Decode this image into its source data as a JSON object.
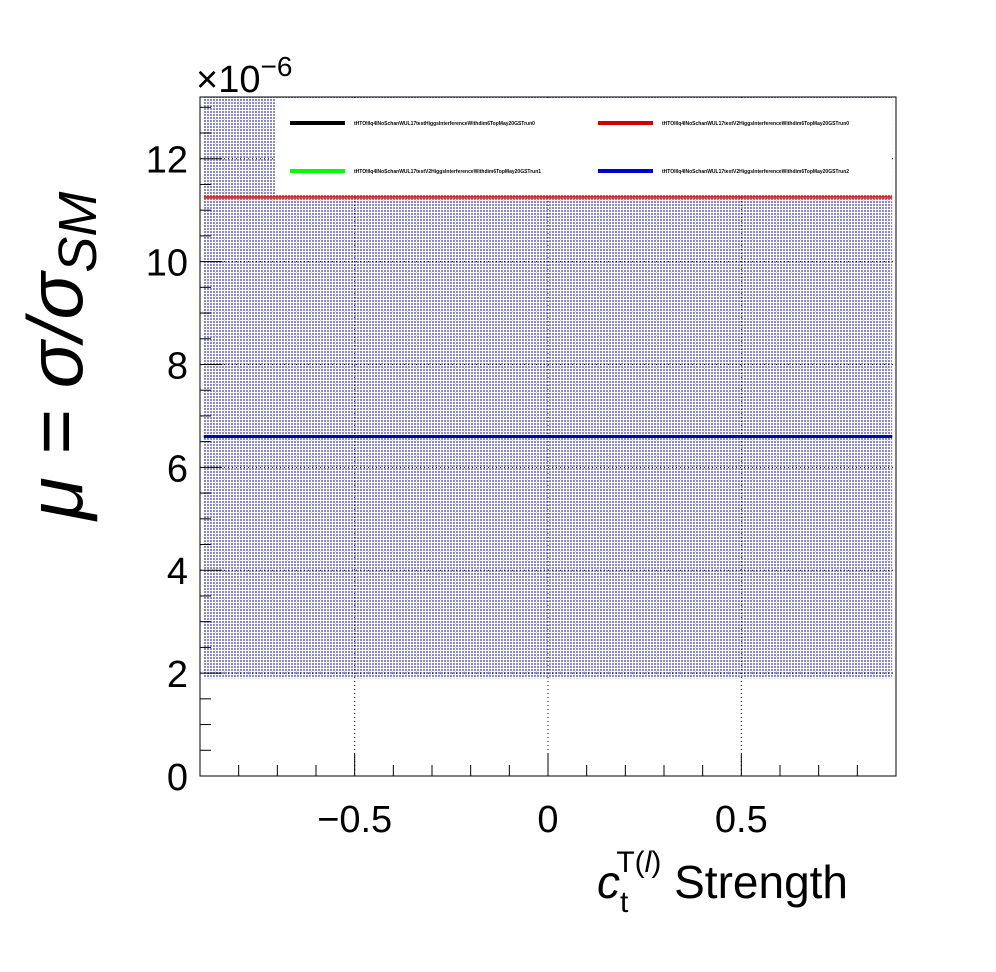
{
  "chart_data": {
    "type": "line",
    "xlabel_main": "c",
    "xlabel_sub": "t",
    "xlabel_sup": "T(",
    "xlabel_sup_italic": "l",
    "xlabel_sup_close": ")",
    "xlabel_rest": " Strength",
    "ylabel_main": "μ = σ/σ",
    "ylabel_sub": "SM",
    "y_multiplier_base": "×10",
    "y_multiplier_exp": "−6",
    "xlim": [
      -0.9,
      0.9
    ],
    "ylim": [
      0,
      13.2
    ],
    "x_ticks": [
      {
        "value": -0.5,
        "label": "−0.5"
      },
      {
        "value": 0,
        "label": "0"
      },
      {
        "value": 0.5,
        "label": "0.5"
      }
    ],
    "y_ticks": [
      {
        "value": 0,
        "label": "0"
      },
      {
        "value": 2,
        "label": "2"
      },
      {
        "value": 4,
        "label": "4"
      },
      {
        "value": 6,
        "label": "6"
      },
      {
        "value": 8,
        "label": "8"
      },
      {
        "value": 10,
        "label": "10"
      },
      {
        "value": 12,
        "label": "12"
      }
    ],
    "grid": true,
    "legend_position": "top-right",
    "band": {
      "x": [
        -0.89,
        0.89
      ],
      "y": [
        1.9,
        13.2
      ],
      "color": "#2a2a9a"
    },
    "series": [
      {
        "name": "tHTOlllq4lNoSchanWUL17testHiggsInterferenceWithdim6TopMay20GSTrun0",
        "color": "#000000",
        "x": [
          -0.89,
          0.89
        ],
        "values": [
          6.6,
          6.6
        ]
      },
      {
        "name": "tHTOlllq4lNoSchanWUL17testV2HiggsInterferenceWithdim6TopMay20GSTrun0",
        "color": "#d00000",
        "x": [
          -0.89,
          0.89
        ],
        "values": [
          11.25,
          11.25
        ]
      },
      {
        "name": "tHTOlllq4lNoSchanWUL17testV2HiggsInterferenceWithdim6TopMay20GSTrun1",
        "color": "#00ff00",
        "x": [
          -0.89,
          0.89
        ],
        "values": [
          6.6,
          6.6
        ]
      },
      {
        "name": "tHTOlllq4lNoSchanWUL17testV2HiggsInterferenceWithdim6TopMay20GSTrun2",
        "color": "#0000cc",
        "x": [
          -0.89,
          0.89
        ],
        "values": [
          6.6,
          6.6
        ]
      }
    ]
  }
}
